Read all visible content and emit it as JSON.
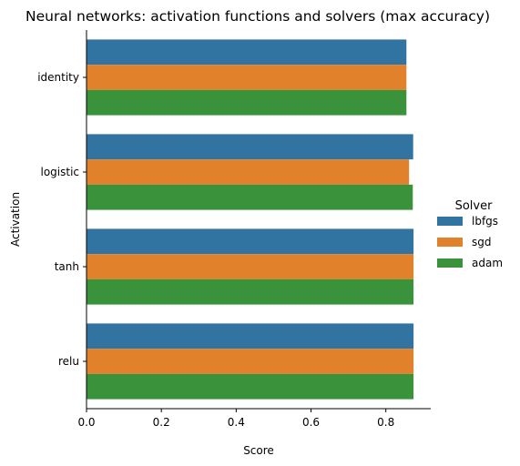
{
  "chart_data": {
    "type": "bar",
    "orientation": "horizontal",
    "title": "Neural networks: activation functions and solvers (max accuracy)",
    "xlabel": "Score",
    "ylabel": "Activation",
    "categories": [
      "identity",
      "logistic",
      "tanh",
      "relu"
    ],
    "series": [
      {
        "name": "lbfgs",
        "color": "#3274a1",
        "values": [
          0.855,
          0.873,
          0.874,
          0.874
        ]
      },
      {
        "name": "sgd",
        "color": "#e1812c",
        "values": [
          0.855,
          0.862,
          0.874,
          0.874
        ]
      },
      {
        "name": "adam",
        "color": "#3a923a",
        "values": [
          0.855,
          0.872,
          0.874,
          0.874
        ]
      }
    ],
    "xlim": [
      0,
      0.92
    ],
    "xticks": [
      "0.0",
      "0.2",
      "0.4",
      "0.6",
      "0.8"
    ],
    "xtick_values": [
      0,
      0.2,
      0.4,
      0.6,
      0.8
    ],
    "grid": false,
    "legend": {
      "title": "Solver",
      "placement": "right"
    }
  }
}
